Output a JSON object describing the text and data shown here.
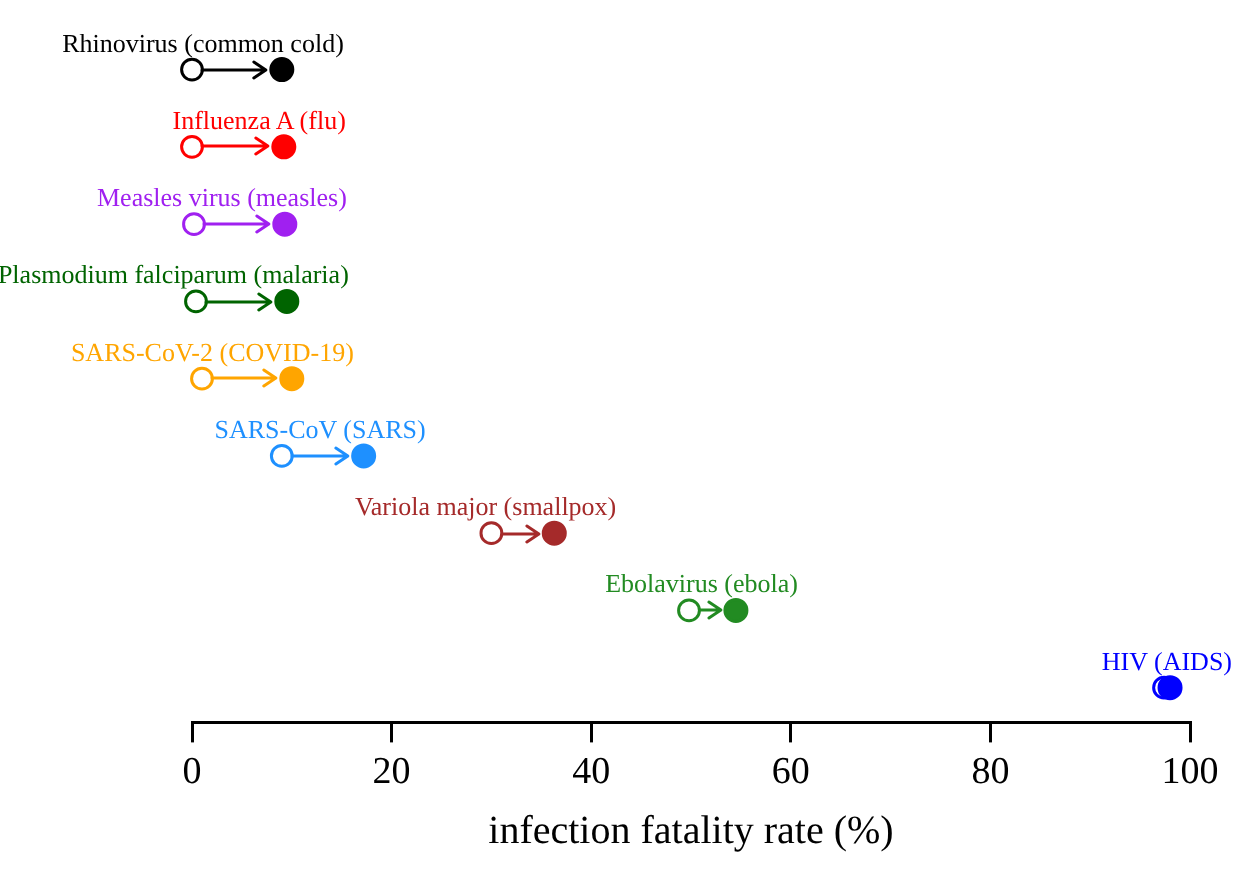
{
  "chart_data": {
    "type": "scatter",
    "orientation": "horizontal",
    "xlabel": "infection fatality rate (%)",
    "categories": [
      "Rhinovirus (common cold)",
      "Influenza A (flu)",
      "Measles virus (measles)",
      "Plasmodium falciparum (malaria)",
      "SARS-CoV-2 (COVID-19)",
      "SARS-CoV (SARS)",
      "Variola major (smallpox)",
      "Ebolavirus (ebola)",
      "HIV (AIDS)"
    ],
    "series": [
      {
        "values": [
          0,
          0,
          0.2,
          0.4,
          1,
          9,
          30,
          49.8,
          97.4
        ],
        "colors": [
          "#000000",
          "#ff0000",
          "#a020f0",
          "#006400",
          "#ffa500",
          "#1e90ff",
          "#a52a2a",
          "#228b22",
          "#0000ff"
        ]
      },
      {
        "values": [
          9,
          9.2,
          9.3,
          9.5,
          10,
          17.2,
          36.3,
          54.5,
          98
        ],
        "colors": [
          "#000000",
          "#ff0000",
          "#a020f0",
          "#006400",
          "#ffa500",
          "#1e90ff",
          "#a52a2a",
          "#228b22",
          "#0000ff"
        ]
      }
    ],
    "xlim": [
      0,
      100
    ],
    "xticks": [
      0,
      20,
      40,
      60,
      80,
      100
    ],
    "marker": "circle",
    "grid": false,
    "legend": false,
    "tick_labels": "x"
  }
}
